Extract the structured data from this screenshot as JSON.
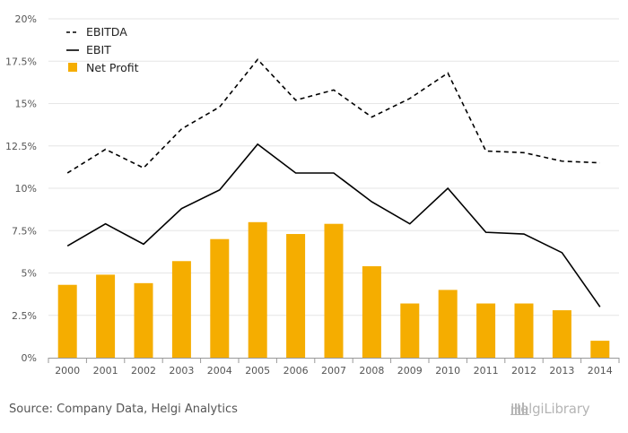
{
  "chart_data": {
    "type": "bar",
    "categories": [
      "2000",
      "2001",
      "2002",
      "2003",
      "2004",
      "2005",
      "2006",
      "2007",
      "2008",
      "2009",
      "2010",
      "2011",
      "2012",
      "2013",
      "2014"
    ],
    "series": [
      {
        "name": "EBITDA",
        "kind": "line",
        "style": "dashed",
        "color": "#000000",
        "values": [
          10.9,
          12.3,
          11.2,
          13.5,
          14.8,
          17.6,
          15.2,
          15.8,
          14.2,
          15.3,
          16.8,
          12.2,
          12.1,
          11.6,
          11.5
        ]
      },
      {
        "name": "EBIT",
        "kind": "line",
        "style": "solid",
        "color": "#000000",
        "values": [
          6.6,
          7.9,
          6.7,
          8.8,
          9.9,
          12.6,
          10.9,
          10.9,
          9.2,
          7.9,
          10.0,
          7.4,
          7.3,
          6.2,
          3.0
        ]
      },
      {
        "name": "Net Profit",
        "kind": "bar",
        "color": "#F5AD00",
        "values": [
          4.3,
          4.9,
          4.4,
          5.7,
          7.0,
          8.0,
          7.3,
          7.9,
          5.4,
          3.2,
          4.0,
          3.2,
          3.2,
          2.8,
          1.0
        ]
      }
    ],
    "y_ticks": [
      "0%",
      "2.5%",
      "5%",
      "7.5%",
      "10%",
      "12.5%",
      "15%",
      "17.5%",
      "20%"
    ],
    "ylim": [
      0,
      20
    ],
    "grid": true,
    "legend_position": "top-left",
    "title": "",
    "xlabel": "",
    "ylabel": ""
  },
  "footer": {
    "source": "Source: Company Data, Helgi Analytics",
    "brand": "HelgiLibrary"
  }
}
